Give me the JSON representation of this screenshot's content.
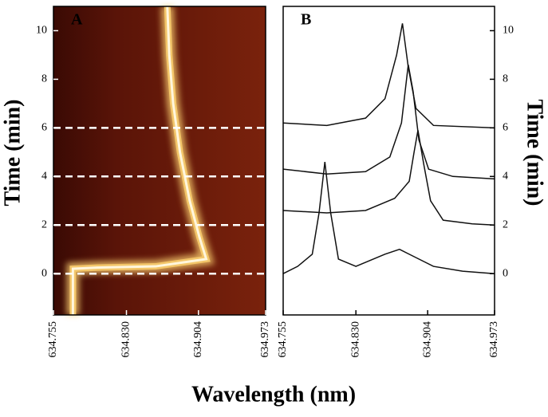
{
  "chart_data": [
    {
      "type": "heatmap",
      "panel_label": "A",
      "ylabel": "Time (min)",
      "xlabel": "Wavelength (nm)",
      "xlim": [
        634.755,
        634.973
      ],
      "ylim": [
        -1.7,
        11
      ],
      "xticks": [
        634.755,
        {
          "value": 634.83,
          "label": "634.830"
        },
        634.904,
        634.973
      ],
      "yticks": [
        0,
        2,
        4,
        6,
        8,
        10
      ],
      "ridge": {
        "color": "#f3c66a",
        "x": [
          634.775,
          634.775,
          634.8,
          634.86,
          634.912,
          634.905,
          634.895,
          634.885,
          634.878,
          634.874,
          634.872
        ],
        "y": [
          -1.7,
          0.2,
          0.25,
          0.3,
          0.6,
          1.5,
          3,
          5,
          7,
          9,
          11
        ]
      },
      "dashed_lines": [
        0,
        2,
        4,
        6
      ]
    },
    {
      "type": "line",
      "panel_label": "B",
      "ylabel": "Time (min)",
      "xlim": [
        634.755,
        634.973
      ],
      "ylim": [
        -1.7,
        11
      ],
      "xticks": [
        634.755,
        {
          "value": 634.83,
          "label": "634.830"
        },
        634.904,
        634.973
      ],
      "yticks": [
        0,
        2,
        4,
        6,
        8,
        10
      ],
      "series": [
        {
          "color": "#111111",
          "x": [
            634.755,
            634.77,
            634.785,
            634.792,
            634.798,
            634.804,
            634.812,
            634.83,
            634.86,
            634.875,
            634.89,
            634.91,
            634.94,
            634.973
          ],
          "values": [
            0,
            0.3,
            0.8,
            2.5,
            4.6,
            2.5,
            0.6,
            0.3,
            0.8,
            1.0,
            0.7,
            0.3,
            0.1,
            0
          ]
        },
        {
          "color": "#111111",
          "x": [
            634.755,
            634.8,
            634.84,
            634.87,
            634.885,
            634.89,
            634.894,
            634.9,
            634.907,
            634.92,
            634.95,
            634.973
          ],
          "values": [
            2.6,
            2.5,
            2.6,
            3.1,
            3.8,
            5.0,
            5.9,
            4.5,
            3.0,
            2.2,
            2.05,
            2.0
          ]
        },
        {
          "color": "#111111",
          "x": [
            634.755,
            634.8,
            634.84,
            634.865,
            634.877,
            634.884,
            634.889,
            634.895,
            634.905,
            634.93,
            634.973
          ],
          "values": [
            4.3,
            4.1,
            4.2,
            4.8,
            6.2,
            8.6,
            7.5,
            5.5,
            4.3,
            4.0,
            3.9
          ]
        },
        {
          "color": "#111111",
          "x": [
            634.755,
            634.8,
            634.84,
            634.86,
            634.872,
            634.878,
            634.884,
            634.892,
            634.91,
            634.973
          ],
          "values": [
            6.2,
            6.1,
            6.4,
            7.2,
            9.0,
            10.3,
            8.5,
            6.8,
            6.1,
            6.0
          ]
        }
      ]
    }
  ]
}
